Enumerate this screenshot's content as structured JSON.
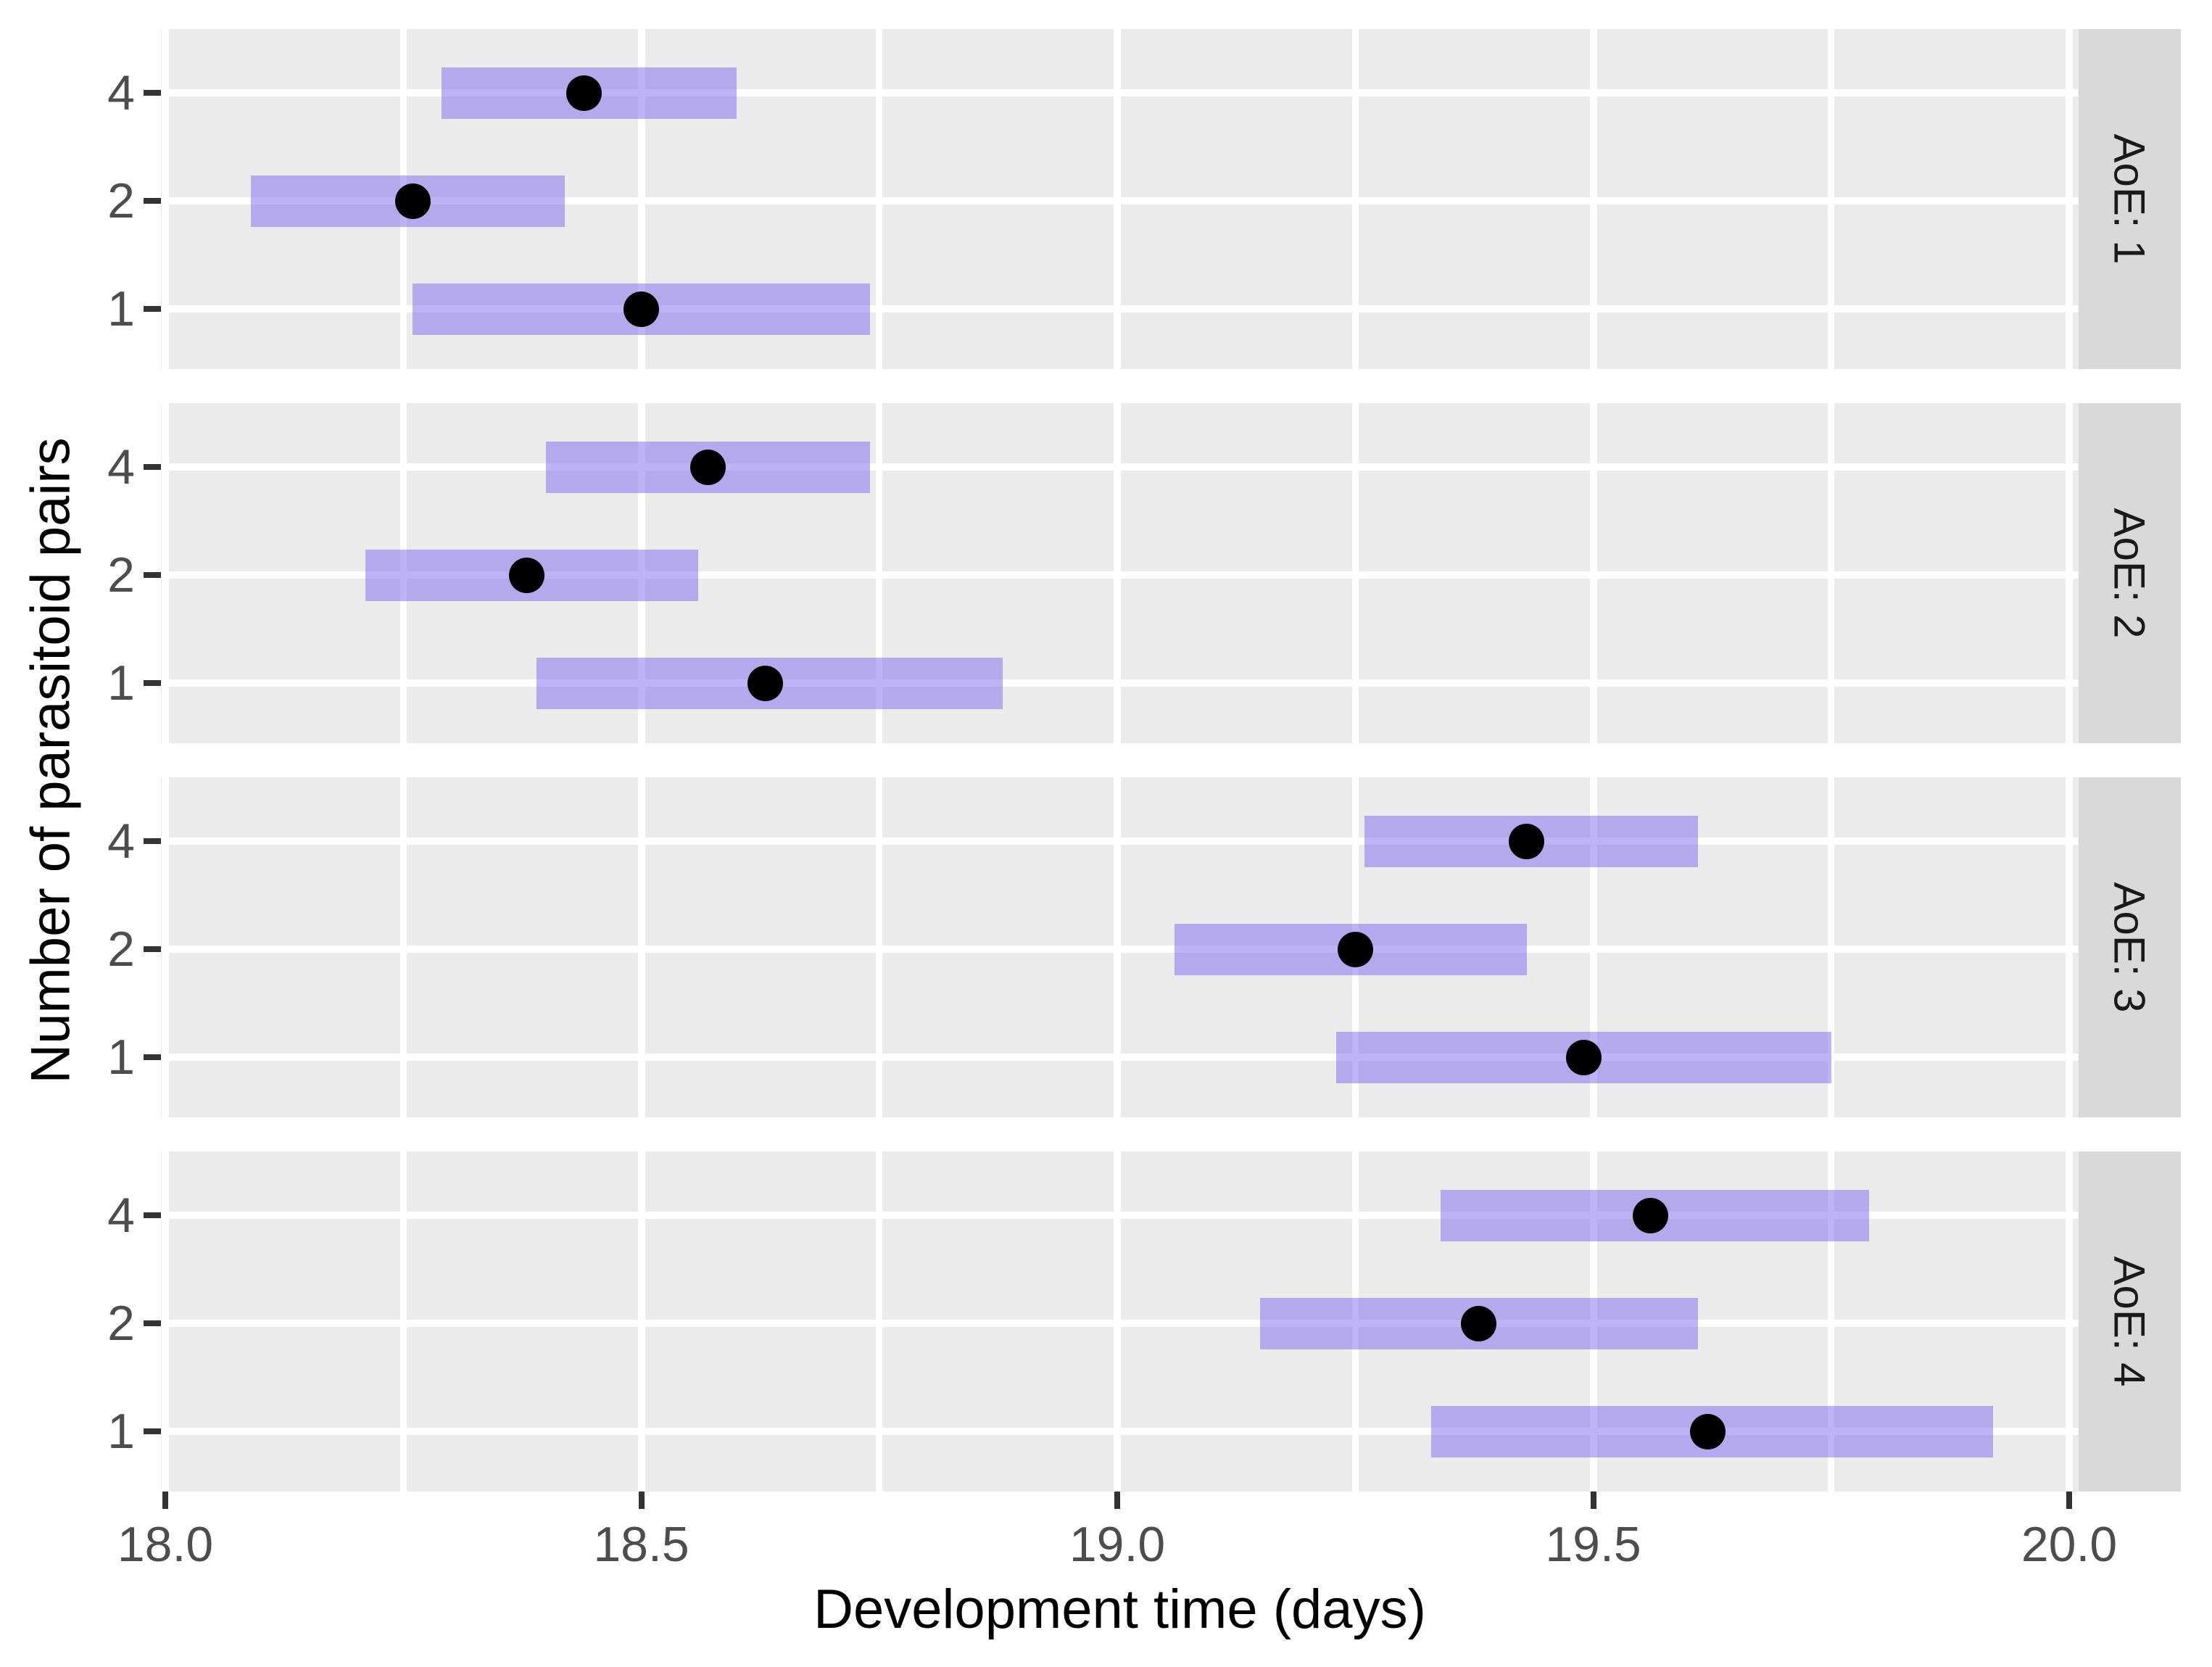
{
  "chart_data": {
    "type": "pointrange",
    "title": "",
    "xlabel": "Development time (days)",
    "ylabel": "Number of parasitoid pairs",
    "x_breaks": [
      18.0,
      18.5,
      19.0,
      19.5,
      20.0
    ],
    "x_break_labels": [
      "18.0",
      "18.5",
      "19.0",
      "19.5",
      "20.0"
    ],
    "x_minor_breaks": [
      18.25,
      18.75,
      19.25,
      19.75
    ],
    "xlim": [
      17.9954,
      20.0099
    ],
    "y_categories": [
      "4",
      "2",
      "1"
    ],
    "facet_variable": "AoE",
    "grid": true,
    "legend_position": "none",
    "facets": [
      {
        "label": "AoE: 1",
        "rows": [
          {
            "pairs": "4",
            "estimate": 18.44,
            "lower": 18.29,
            "upper": 18.6
          },
          {
            "pairs": "2",
            "estimate": 18.26,
            "lower": 18.09,
            "upper": 18.42
          },
          {
            "pairs": "1",
            "estimate": 18.5,
            "lower": 18.26,
            "upper": 18.74
          }
        ]
      },
      {
        "label": "AoE: 2",
        "rows": [
          {
            "pairs": "4",
            "estimate": 18.57,
            "lower": 18.4,
            "upper": 18.74
          },
          {
            "pairs": "2",
            "estimate": 18.38,
            "lower": 18.21,
            "upper": 18.56
          },
          {
            "pairs": "1",
            "estimate": 18.63,
            "lower": 18.39,
            "upper": 18.88
          }
        ]
      },
      {
        "label": "AoE: 3",
        "rows": [
          {
            "pairs": "4",
            "estimate": 19.43,
            "lower": 19.26,
            "upper": 19.61
          },
          {
            "pairs": "2",
            "estimate": 19.25,
            "lower": 19.06,
            "upper": 19.43
          },
          {
            "pairs": "1",
            "estimate": 19.49,
            "lower": 19.23,
            "upper": 19.75
          }
        ]
      },
      {
        "label": "AoE: 4",
        "rows": [
          {
            "pairs": "4",
            "estimate": 19.56,
            "lower": 19.34,
            "upper": 19.79
          },
          {
            "pairs": "2",
            "estimate": 19.38,
            "lower": 19.15,
            "upper": 19.61
          },
          {
            "pairs": "1",
            "estimate": 19.62,
            "lower": 19.33,
            "upper": 19.92
          }
        ]
      }
    ]
  },
  "style": {
    "panel_bg": "#EBEBEB",
    "strip_bg": "#D9D9D9",
    "gridline": "#FFFFFF",
    "bar_fill": "#7B68EE",
    "bar_alpha": 0.5,
    "point_color": "#000000",
    "tick_mark": "#333333",
    "tick_label": "#4D4D4D",
    "title_color": "#000000"
  }
}
